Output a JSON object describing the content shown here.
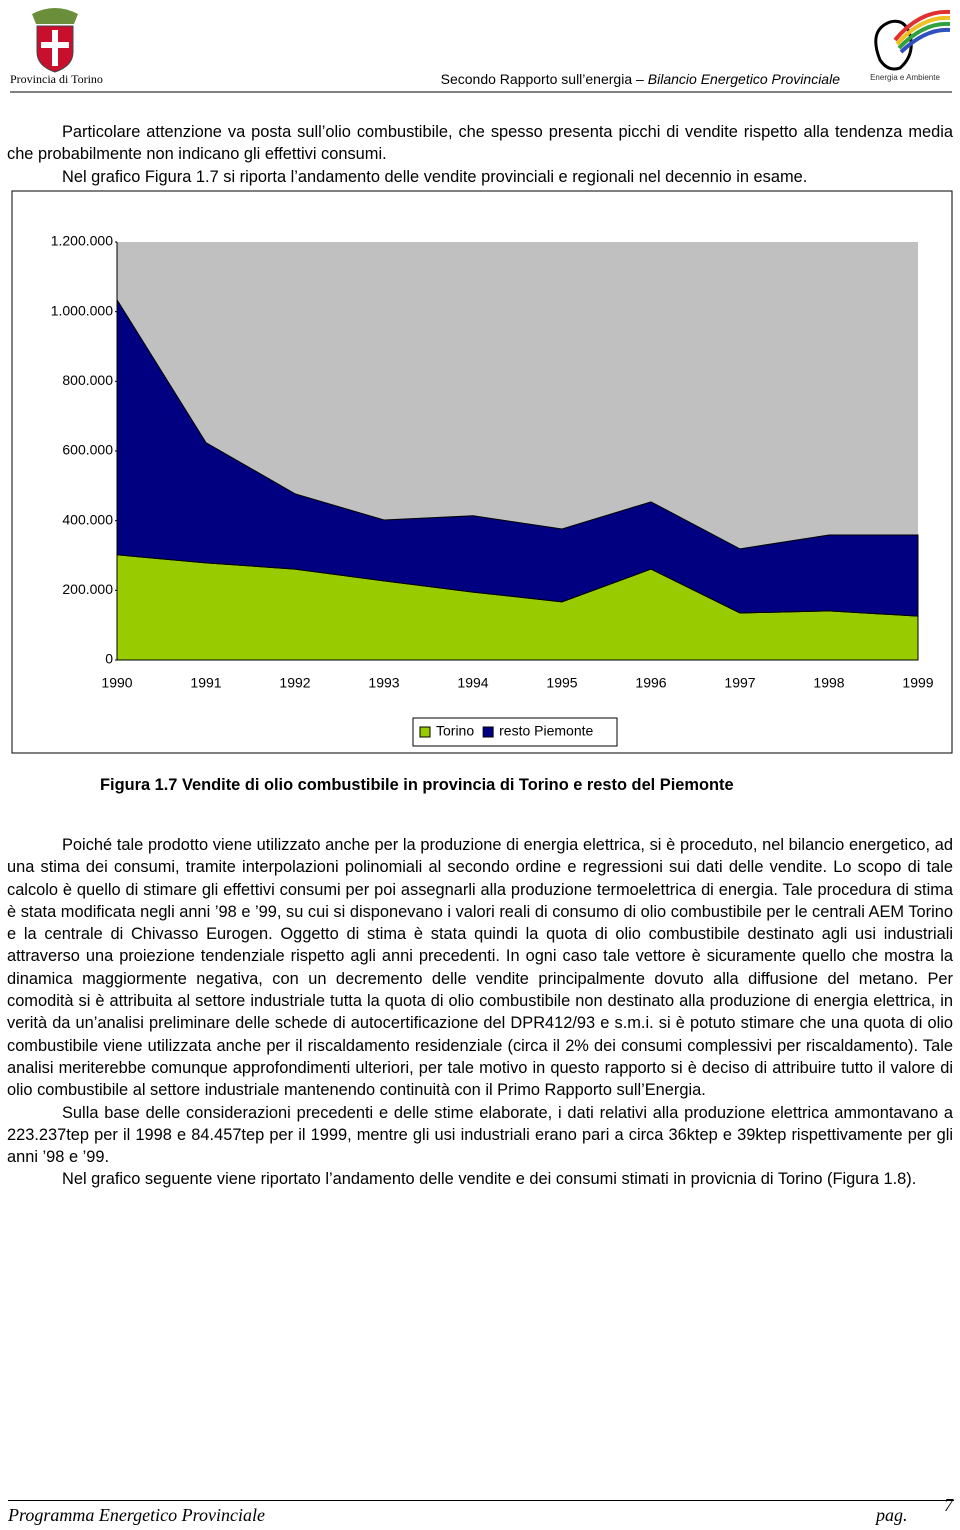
{
  "header": {
    "left": "Provincia di Torino",
    "report_title": "Secondo Rapporto sull’energia –",
    "report_subtitle": "Bilancio Energetico Provinciale",
    "logo_text": "Energia e Ambiente"
  },
  "intro": [
    "Particolare attenzione va posta sull’olio combustibile, che spesso presenta picchi di vendite rispetto alla tendenza media che probabilmente non indicano gli effettivi consumi.",
    "Nel grafico Figura 1.7 si riporta l’andamento delle vendite provinciali e regionali nel decennio in esame."
  ],
  "chart_data": {
    "type": "area",
    "stacked": true,
    "categories": [
      "1990",
      "1991",
      "1992",
      "1993",
      "1994",
      "1995",
      "1996",
      "1997",
      "1998",
      "1999"
    ],
    "series": [
      {
        "name": "Torino",
        "color": "#99cc00",
        "values": [
          302000,
          279000,
          261000,
          227000,
          195000,
          167000,
          261000,
          135000,
          141000,
          126000
        ]
      },
      {
        "name": "resto Piemonte",
        "color": "#000080",
        "values": [
          732000,
          345000,
          216000,
          175000,
          219000,
          209000,
          193000,
          184000,
          218000,
          233000
        ]
      }
    ],
    "ylim": [
      0,
      1200000
    ],
    "yticks": [
      0,
      {
        "value": 200000,
        "label": "200.000"
      },
      {
        "value": 400000,
        "label": "400.000"
      },
      {
        "value": 600000,
        "label": "600.000"
      },
      {
        "value": 800000,
        "label": "800.000"
      },
      {
        "value": 1000000,
        "label": "1.000.000"
      },
      {
        "value": 1200000,
        "label": "1.200.000"
      }
    ],
    "plot_background": "#c0c0c0",
    "legend": "bottom"
  },
  "caption": "Figura 1.7 Vendite di olio combustibile in provincia di Torino e resto del Piemonte",
  "body": [
    "Poiché tale prodotto viene utilizzato anche per la produzione di energia elettrica, si è proceduto, nel bilancio energetico, ad una stima dei consumi, tramite interpolazioni polinomiali al secondo ordine e regressioni sui dati delle vendite. Lo scopo di tale calcolo è quello di stimare gli effettivi consumi per poi assegnarli alla produzione termoelettrica di energia. Tale procedura di stima è stata modificata negli anni ’98 e ’99, su cui si disponevano i valori reali di consumo di olio combustibile per le centrali AEM Torino e la centrale di Chivasso Eurogen. Oggetto di stima è stata quindi la quota di olio combustibile destinato agli usi industriali attraverso una proiezione tendenziale rispetto agli anni precedenti. In ogni caso tale vettore è sicuramente quello che mostra la dinamica maggiormente negativa, con un decremento delle vendite principalmente dovuto alla diffusione del metano. Per comodità si è attribuita al settore industriale tutta la quota di olio combustibile non destinato alla produzione di energia elettrica, in verità da un’analisi preliminare delle schede di autocertificazione del DPR412/93 e s.m.i. si è potuto stimare che una quota di olio combustibile viene utilizzata anche per il riscaldamento residenziale (circa il 2% dei consumi complessivi per riscaldamento). Tale analisi meriterebbe comunque approfondimenti ulteriori, per tale motivo in questo rapporto si è deciso di attribuire tutto il valore di olio combustibile al settore industriale mantenendo continuità con il Primo Rapporto sull’Energia.",
    "Sulla base delle considerazioni precedenti e delle stime elaborate, i dati relativi alla produzione elettrica ammontavano a 223.237tep per il 1998 e 84.457tep per il 1999, mentre gli usi industriali erano pari a circa 36ktep e 39ktep rispettivamente per gli anni ’98 e ’99.",
    "Nel grafico seguente viene riportato l’andamento delle vendite e dei consumi stimati in provicnia di Torino (Figura 1.8)."
  ],
  "footer": {
    "title": "Programma Energetico Provinciale",
    "page_label": "pag.",
    "page_number": 7
  }
}
